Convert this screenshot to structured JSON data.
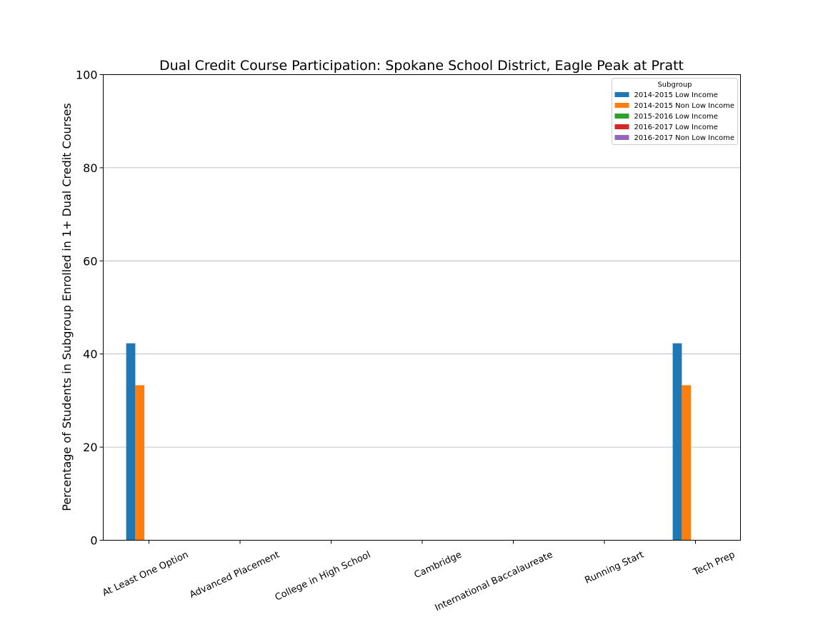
{
  "chart_data": {
    "type": "bar",
    "title": "Dual Credit Course Participation: Spokane School District, Eagle Peak at Pratt",
    "xlabel": "",
    "ylabel": "Percentage of Students in Subgroup Enrolled in 1+ Dual Credit Courses",
    "ylim": [
      0,
      100
    ],
    "yticks": [
      0,
      20,
      40,
      60,
      80,
      100
    ],
    "grid": "y",
    "categories": [
      "At Least One Option",
      "Advanced Placement",
      "College in High School",
      "Cambridge",
      "International Baccalaureate",
      "Running Start",
      "Tech Prep"
    ],
    "legend": {
      "title": "Subgroup",
      "placement": "top-right"
    },
    "series": [
      {
        "name": "2014-2015 Low Income",
        "color": "#1f77b4",
        "values": [
          42.3,
          0,
          0,
          0,
          0,
          0,
          42.3
        ]
      },
      {
        "name": "2014-2015 Non Low Income",
        "color": "#ff7f0e",
        "values": [
          33.3,
          0,
          0,
          0,
          0,
          0,
          33.3
        ]
      },
      {
        "name": "2015-2016 Low Income",
        "color": "#2ca02c",
        "values": [
          0,
          0,
          0,
          0,
          0,
          0,
          0
        ]
      },
      {
        "name": "2016-2017 Low Income",
        "color": "#d62728",
        "values": [
          0,
          0,
          0,
          0,
          0,
          0,
          0
        ]
      },
      {
        "name": "2016-2017 Non Low Income",
        "color": "#9467bd",
        "values": [
          0,
          0,
          0,
          0,
          0,
          0,
          0
        ]
      }
    ]
  }
}
